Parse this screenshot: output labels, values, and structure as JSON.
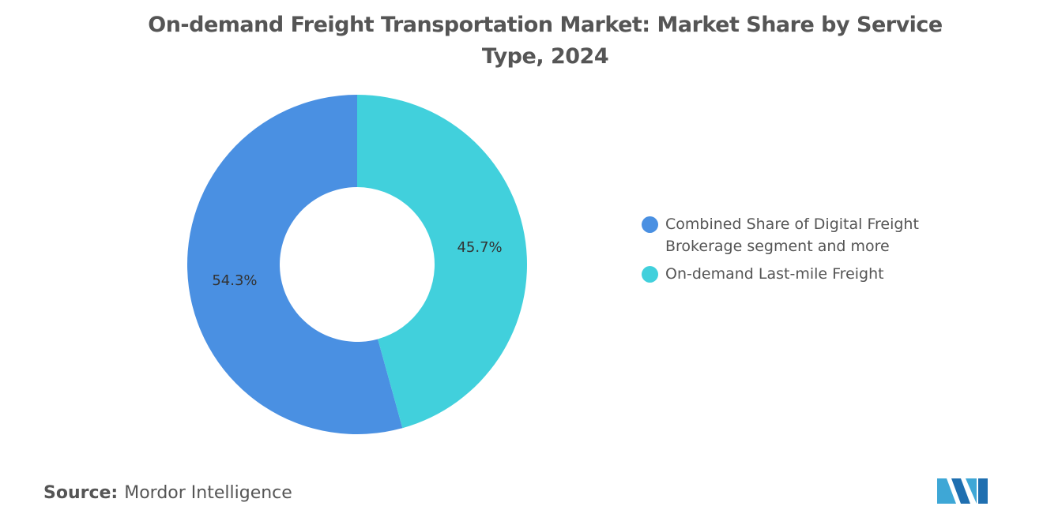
{
  "chart_data": {
    "type": "donut",
    "title": "On-demand Freight Transportation Market: Market Share by Service Type, 2024",
    "categories": [
      "Combined Share of Digital Freight Brokerage segment and more",
      "On-demand Last-mile Freight"
    ],
    "values": [
      54.3,
      45.7
    ],
    "value_labels": [
      "54.3%",
      "45.7%"
    ],
    "colors": [
      "#4a90e2",
      "#41d0dc"
    ],
    "legend": "right",
    "source_label": "Source:",
    "source": "Mordor Intelligence"
  }
}
